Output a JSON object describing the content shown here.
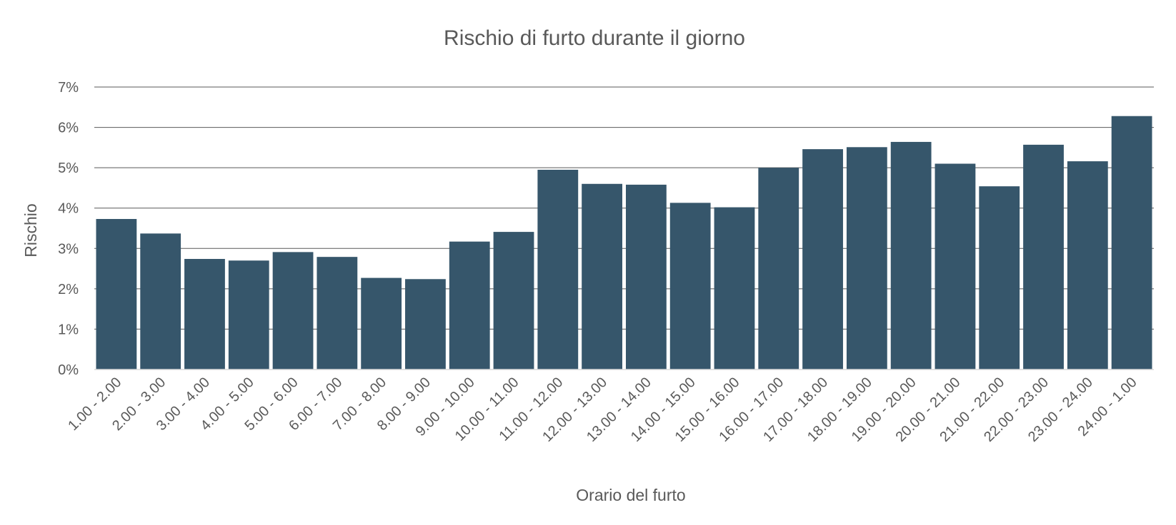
{
  "chart_data": {
    "type": "bar",
    "title": "Rischio di furto durante il giorno",
    "xlabel": "Orario del furto",
    "ylabel": "Rischio",
    "y_unit": "%",
    "ylim": [
      0,
      7
    ],
    "yticks": [
      0,
      1,
      2,
      3,
      4,
      5,
      6,
      7
    ],
    "ytick_labels": [
      "0%",
      "1%",
      "2%",
      "3%",
      "4%",
      "5%",
      "6%",
      "7%"
    ],
    "grid": true,
    "legend": "none",
    "bar_color": "#36566b",
    "categories": [
      "1.00 - 2.00",
      "2.00 - 3.00",
      "3.00 - 4.00",
      "4.00 - 5.00",
      "5.00 - 6.00",
      "6.00 - 7.00",
      "7.00 - 8.00",
      "8.00 - 9.00",
      "9.00 - 10.00",
      "10.00 - 11.00",
      "11.00 - 12.00",
      "12.00 - 13.00",
      "13.00 - 14.00",
      "14.00 - 15.00",
      "15.00 - 16.00",
      "16.00 - 17.00",
      "17.00 - 18.00",
      "18.00 - 19.00",
      "19.00 - 20.00",
      "20.00 - 21.00",
      "21.00 - 22.00",
      "22.00 - 23.00",
      "23.00 - 24.00",
      "24.00 - 1.00"
    ],
    "values": [
      3.73,
      3.37,
      2.74,
      2.7,
      2.91,
      2.79,
      2.27,
      2.24,
      3.17,
      3.41,
      4.95,
      4.6,
      4.58,
      4.13,
      4.02,
      5.0,
      5.46,
      5.51,
      5.64,
      5.1,
      4.54,
      5.57,
      5.16,
      6.28
    ]
  }
}
